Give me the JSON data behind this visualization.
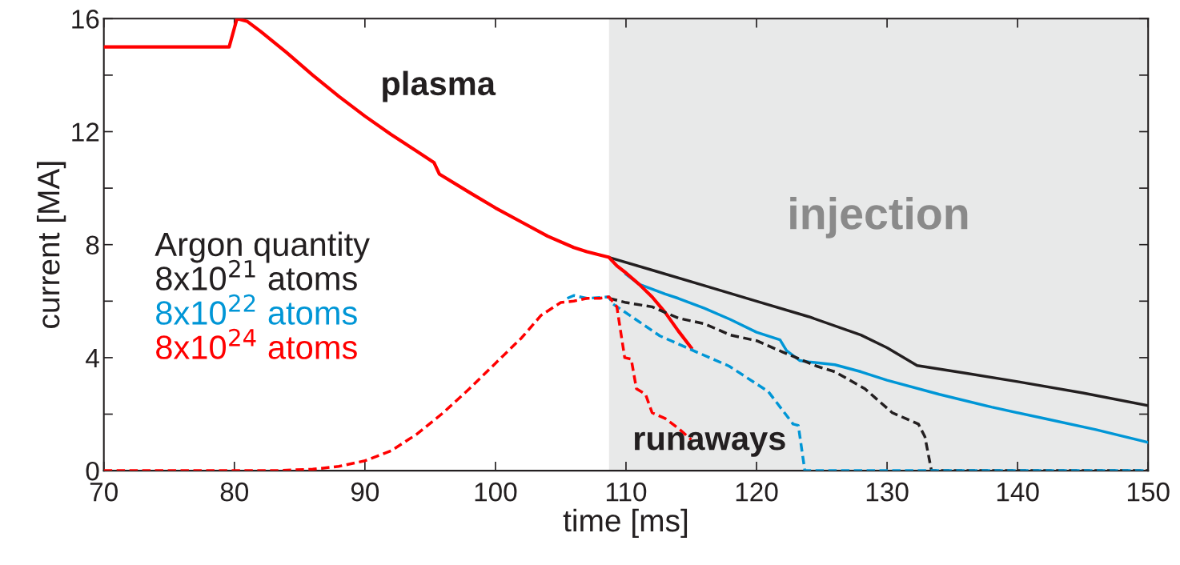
{
  "chart_data": {
    "type": "line",
    "xlabel": "time [ms]",
    "ylabel": "current [MA]",
    "xlim": [
      70,
      150
    ],
    "ylim": [
      0,
      16
    ],
    "xticks": [
      70,
      80,
      90,
      100,
      110,
      120,
      130,
      140,
      150
    ],
    "yticks": [
      0,
      {
        "value": 2,
        "label": null
      },
      4,
      {
        "value": 6,
        "label": null
      },
      8,
      {
        "value": 10,
        "label": null
      },
      12,
      {
        "value": 14,
        "label": null
      },
      16
    ],
    "grid": false,
    "legend": "left",
    "legend_title": "Argon quantity",
    "bands": [
      {
        "axis": "x",
        "from": 108.7,
        "to": 150,
        "label": "injection",
        "color": "#e8e9e9"
      }
    ],
    "annotations": [
      "plasma",
      "runaways"
    ],
    "series": [
      {
        "name": "8x10$^{21}$ atoms",
        "color": "#231f20",
        "line_style": "solid",
        "x": [
          108.7,
          112,
          116,
          120,
          124,
          128,
          130,
          132.3,
          136,
          140,
          145,
          150
        ],
        "values": [
          7.55,
          7.1,
          6.55,
          6.0,
          5.45,
          4.8,
          4.35,
          3.72,
          3.45,
          3.15,
          2.75,
          2.3
        ]
      },
      {
        "name": "8x10$^{22}$ atoms",
        "color": "#0096d6",
        "line_style": "solid",
        "x": [
          110,
          111,
          113,
          114,
          116,
          118,
          120,
          121.8,
          122.3,
          123.3,
          124,
          126,
          128,
          130,
          134,
          138,
          142,
          146,
          150
        ],
        "values": [
          6.95,
          6.6,
          6.25,
          6.1,
          5.75,
          5.35,
          4.9,
          4.63,
          4.25,
          3.9,
          3.85,
          3.75,
          3.5,
          3.2,
          2.7,
          2.25,
          1.85,
          1.45,
          1.0
        ]
      },
      {
        "name": "8x10$^{24}$ atoms",
        "color": "#ff0000",
        "line_style": "solid",
        "x": [
          70,
          79.6,
          80.2,
          81,
          82,
          84,
          86,
          88,
          90,
          92,
          94,
          95.3,
          95.7,
          98,
          100,
          102,
          104,
          106,
          107,
          108.7,
          109.3,
          110,
          111,
          112,
          113,
          114,
          115
        ],
        "values": [
          15,
          15,
          16,
          15.9,
          15.55,
          14.8,
          14.0,
          13.25,
          12.55,
          11.9,
          11.3,
          10.9,
          10.5,
          9.85,
          9.3,
          8.8,
          8.3,
          7.9,
          7.75,
          7.55,
          7.25,
          7.0,
          6.6,
          6.15,
          5.6,
          4.95,
          4.35
        ]
      },
      {
        "color": "#231f20",
        "line_style": "dashed",
        "x": [
          108.7,
          110,
          112,
          114,
          116,
          118,
          120,
          122,
          124.6,
          126,
          128.3,
          130.4,
          132.4,
          132.9,
          133.4,
          150
        ],
        "values": [
          6.1,
          5.95,
          5.8,
          5.4,
          5.2,
          4.8,
          4.6,
          4.2,
          3.7,
          3.5,
          2.9,
          2.05,
          1.65,
          1.2,
          0,
          0
        ]
      },
      {
        "color": "#0096d6",
        "line_style": "dashed",
        "x": [
          105.5,
          106,
          107,
          108.7,
          109,
          112.6,
          115.4,
          117.9,
          120.9,
          122.8,
          123.2,
          123.7,
          150
        ],
        "values": [
          6.1,
          6.2,
          6.1,
          6.15,
          5.9,
          4.77,
          4.2,
          3.7,
          2.8,
          1.65,
          1.6,
          0,
          0
        ]
      },
      {
        "color": "#ff0000",
        "line_style": "dashed",
        "x": [
          70,
          83,
          86,
          88,
          90,
          92,
          94,
          96,
          98,
          100,
          102,
          103.5,
          105,
          106,
          107,
          108,
          108.7,
          109.3,
          109.9,
          110.4,
          110.8,
          111.5,
          112,
          113,
          114,
          115
        ],
        "values": [
          0,
          0,
          0.05,
          0.15,
          0.35,
          0.7,
          1.3,
          2.05,
          2.9,
          3.8,
          4.7,
          5.5,
          5.95,
          6.0,
          6.1,
          6.1,
          6.15,
          5.8,
          4.0,
          3.95,
          2.9,
          2.7,
          2.05,
          1.85,
          1.5,
          1.1
        ]
      }
    ]
  }
}
